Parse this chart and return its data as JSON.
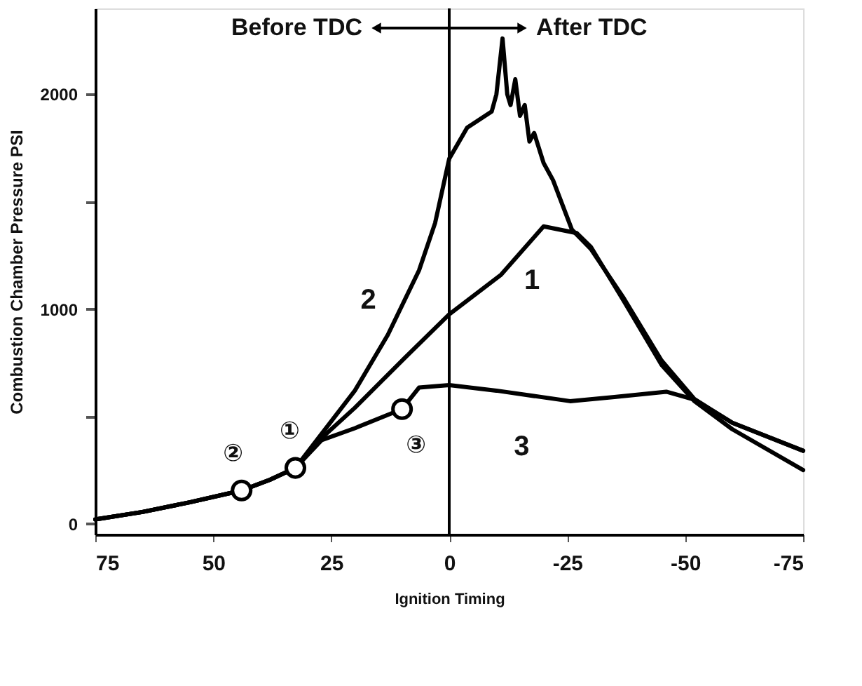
{
  "chart_data": {
    "type": "line",
    "xlabel": "Ignition Timing",
    "ylabel": "Combustion Chamber Pressure PSI",
    "xlim": [
      75,
      -75
    ],
    "xticks": [
      75,
      50,
      25,
      0,
      -25,
      -50,
      -75
    ],
    "ylim": [
      -50,
      2400
    ],
    "yticks": [
      0,
      {
        "value": 500,
        "label": null
      },
      1000,
      {
        "value": 1500,
        "label": null
      },
      2000
    ],
    "grid": false,
    "line_style": "solid",
    "marker": "none",
    "ref_lines": [
      {
        "axis": "x",
        "value": 0,
        "color": "#000000"
      }
    ],
    "series": [
      {
        "color": "#000000",
        "x": [
          75,
          65,
          55,
          44,
          38,
          32.6,
          27,
          20,
          10,
          0,
          -11,
          -20,
          -27,
          -30,
          -37,
          -45,
          -52,
          -60,
          -75
        ],
        "values": [
          20,
          55,
          100,
          155,
          205,
          260,
          400,
          540,
          760,
          975,
          1160,
          1385,
          1354,
          1290,
          1037,
          740,
          570,
          440,
          250
        ]
      },
      {
        "color": "#000000",
        "x": [
          75,
          65,
          55,
          44,
          38,
          32.6,
          27,
          20,
          13,
          6.4,
          3,
          0,
          -3.8,
          -9,
          -10,
          -11.3,
          -12.3,
          -13,
          -14,
          -15,
          -16,
          -17,
          -18,
          -20,
          -22,
          -26,
          -30,
          -37,
          -45,
          -52,
          -60,
          -75
        ],
        "values": [
          20,
          55,
          100,
          155,
          205,
          260,
          420,
          620,
          880,
          1180,
          1400,
          1700,
          1845,
          1920,
          2000,
          2260,
          2000,
          1950,
          2070,
          1900,
          1950,
          1780,
          1820,
          1680,
          1600,
          1370,
          1280,
          1050,
          760,
          580,
          470,
          340
        ]
      },
      {
        "color": "#000000",
        "x": [
          75,
          65,
          55,
          44,
          38,
          32.6,
          27,
          20,
          10,
          6.4,
          0,
          -10,
          -25.6,
          -35,
          -46,
          -52,
          -60,
          -75
        ],
        "values": [
          20,
          55,
          100,
          155,
          205,
          260,
          390,
          445,
          534,
          634,
          646,
          620,
          571,
          590,
          615,
          578,
          470,
          340
        ]
      },
      {
        "type": "scatter",
        "marker": "circle",
        "color": "#ffffff",
        "x": [
          44,
          32.6,
          10
        ],
        "values": [
          155,
          260,
          534
        ]
      }
    ],
    "annotations": [
      "Before TDC",
      "After TDC",
      {
        "text": "②",
        "x": 44,
        "y": 155
      },
      {
        "text": "①",
        "x": 32.6,
        "y": 260
      },
      {
        "text": "③",
        "x": 10,
        "y": 534
      },
      {
        "text": "2",
        "x": 10,
        "y": 1016
      },
      {
        "text": "1",
        "x": -11,
        "y": 1160
      },
      {
        "text": "3",
        "x": -10,
        "y": 620
      }
    ]
  }
}
